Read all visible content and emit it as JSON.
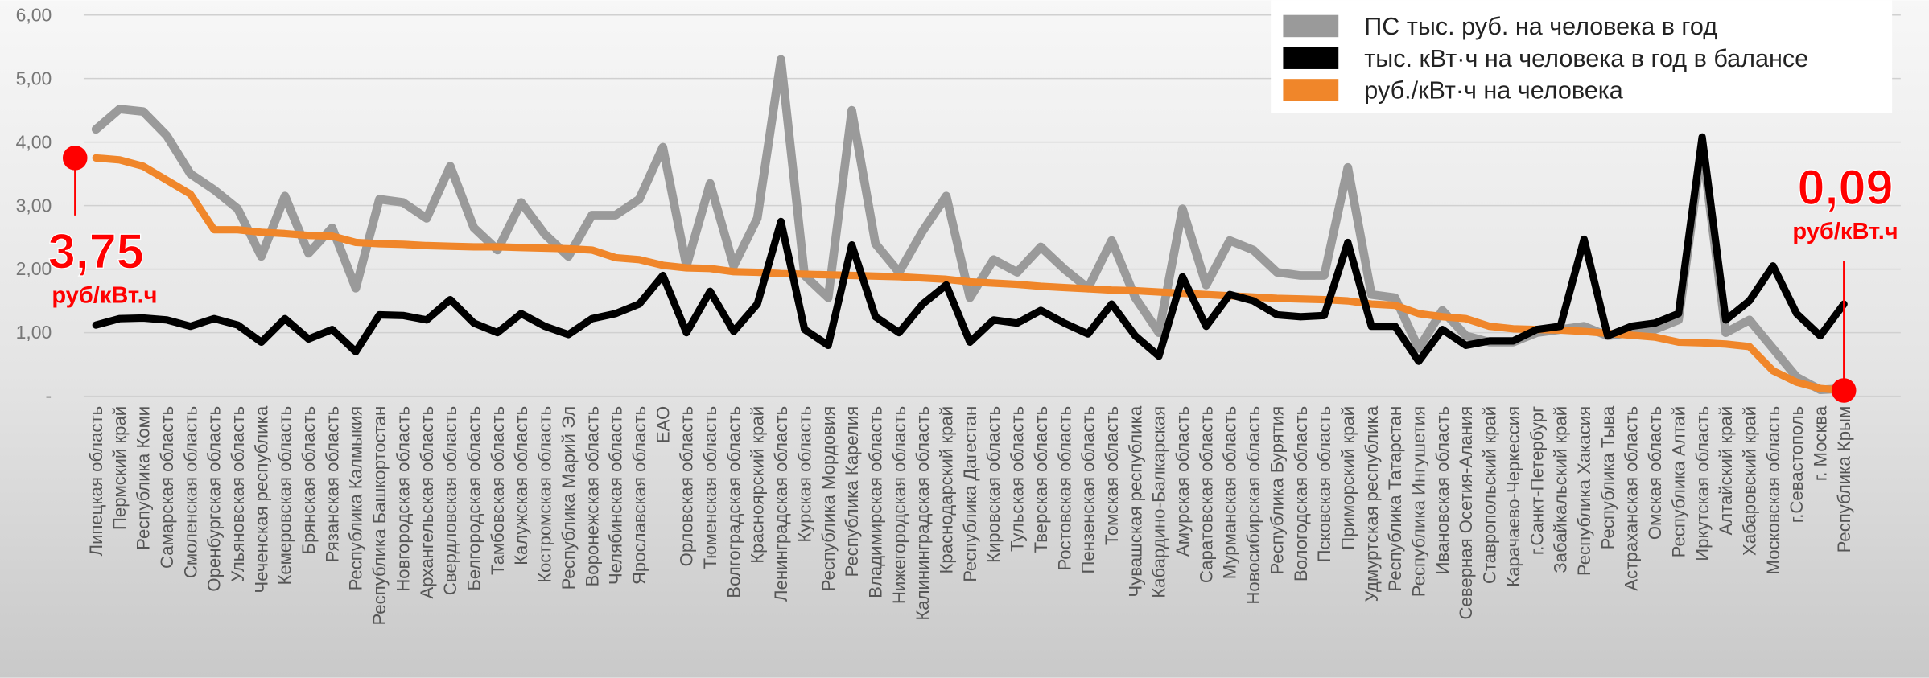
{
  "chart_data": {
    "type": "line",
    "categories": [
      "Липецкая область",
      "Пермский край",
      "Республика Коми",
      "Самарская область",
      "Смоленская область",
      "Оренбургская область",
      "Ульяновская область",
      "Чеченская республика",
      "Кемеровская область",
      "Брянская область",
      "Рязанская область",
      "Республика Калмыкия",
      "Республика Башкортостан",
      "Новгородская область",
      "Архангельская область",
      "Свердловская область",
      "Белгородская область",
      "Тамбовская область",
      "Калужская область",
      "Костромская область",
      "Республика Марий Эл",
      "Воронежская область",
      "Челябинская область",
      "Ярославская область",
      "ЕАО",
      "Орловская область",
      "Тюменская область",
      "Волгоградская область",
      "Красноярский край",
      "Ленинградская область",
      "Курская область",
      "Республика Мордовия",
      "Республика Карелия",
      "Владимирская область",
      "Нижегородская область",
      "Калининградская область",
      "Краснодарский край",
      "Республика Дагестан",
      "Кировская область",
      "Тульская область",
      "Тверская область",
      "Ростовская область",
      "Пензенская область",
      "Томская область",
      "Чувашская республика",
      "Кабардино-Балкарская",
      "Амурская область",
      "Саратовская область",
      "Мурманская область",
      "Новосибирская область",
      "Республика Бурятия",
      "Вологодская область",
      "Псковская область",
      "Приморский край",
      "Удмуртская республика",
      "Республика Татарстан",
      "Республика Ингушетия",
      "Ивановская область",
      "Северная Осетия-Алания",
      "Ставропольский край",
      "Карачаево-Черкессия",
      "г.Санкт-Петербург",
      "Забайкальский край",
      "Республика Хакасия",
      "Республика Тыва",
      "Астраханская область",
      "Омская область",
      "Республика Алтай",
      "Иркутская область",
      "Алтайский край",
      "Хабаровский край",
      "Московская область",
      "г.Севастополь",
      "г. Москва",
      "Республика Крым"
    ],
    "series": [
      {
        "name": "ПС тыс. руб. на человека в год",
        "color": "#9a9a9a",
        "values": [
          4.2,
          4.52,
          4.48,
          4.1,
          3.5,
          3.25,
          2.95,
          2.2,
          3.15,
          2.25,
          2.65,
          1.7,
          3.1,
          3.05,
          2.8,
          3.62,
          2.65,
          2.3,
          3.05,
          2.55,
          2.2,
          2.85,
          2.85,
          3.1,
          3.92,
          2.05,
          3.35,
          2.05,
          2.8,
          5.3,
          1.9,
          1.55,
          4.5,
          2.4,
          1.95,
          2.6,
          3.15,
          1.55,
          2.15,
          1.95,
          2.35,
          2.0,
          1.7,
          2.45,
          1.55,
          1.0,
          2.95,
          1.75,
          2.45,
          2.3,
          1.95,
          1.9,
          1.9,
          3.6,
          1.6,
          1.55,
          0.75,
          1.35,
          0.95,
          0.85,
          0.85,
          1.0,
          1.05,
          1.1,
          0.95,
          1.0,
          1.05,
          1.2,
          3.95,
          1.0,
          1.2,
          0.75,
          0.3,
          0.1,
          0.12
        ]
      },
      {
        "name": "руб./кВт·ч на человека",
        "color": "#f0862a",
        "values": [
          3.75,
          3.72,
          3.62,
          3.4,
          3.18,
          2.62,
          2.62,
          2.58,
          2.56,
          2.53,
          2.52,
          2.42,
          2.4,
          2.39,
          2.37,
          2.36,
          2.35,
          2.35,
          2.34,
          2.33,
          2.32,
          2.3,
          2.18,
          2.15,
          2.06,
          2.02,
          2.01,
          1.96,
          1.95,
          1.93,
          1.92,
          1.91,
          1.9,
          1.89,
          1.88,
          1.86,
          1.84,
          1.8,
          1.78,
          1.76,
          1.73,
          1.71,
          1.69,
          1.67,
          1.66,
          1.64,
          1.62,
          1.6,
          1.58,
          1.56,
          1.54,
          1.53,
          1.52,
          1.5,
          1.45,
          1.43,
          1.3,
          1.25,
          1.22,
          1.1,
          1.06,
          1.05,
          1.04,
          1.02,
          0.99,
          0.96,
          0.93,
          0.85,
          0.84,
          0.82,
          0.78,
          0.4,
          0.22,
          0.12,
          0.09
        ]
      },
      {
        "name": "тыс. кВт·ч на человека в год в балансе",
        "color": "#000000",
        "values": [
          1.12,
          1.22,
          1.23,
          1.2,
          1.1,
          1.22,
          1.12,
          0.85,
          1.22,
          0.9,
          1.05,
          0.7,
          1.28,
          1.27,
          1.2,
          1.52,
          1.15,
          1.0,
          1.3,
          1.1,
          0.97,
          1.22,
          1.3,
          1.45,
          1.9,
          1.0,
          1.65,
          1.02,
          1.45,
          2.75,
          1.05,
          0.8,
          2.38,
          1.25,
          1.0,
          1.45,
          1.75,
          0.85,
          1.2,
          1.15,
          1.35,
          1.15,
          0.98,
          1.45,
          0.95,
          0.63,
          1.88,
          1.1,
          1.6,
          1.5,
          1.28,
          1.25,
          1.27,
          2.42,
          1.1,
          1.1,
          0.55,
          1.05,
          0.8,
          0.87,
          0.87,
          1.05,
          1.1,
          2.47,
          0.95,
          1.1,
          1.15,
          1.3,
          4.08,
          1.2,
          1.5,
          2.05,
          1.3,
          0.95,
          1.45
        ]
      }
    ],
    "legend_order": [
      0,
      2,
      1
    ],
    "ylim": [
      0,
      6
    ],
    "yticks": [
      {
        "value": 0,
        "label": "-"
      },
      {
        "value": 1,
        "label": "1,00"
      },
      {
        "value": 2,
        "label": "2,00"
      },
      {
        "value": 3,
        "label": "3,00"
      },
      {
        "value": 4,
        "label": "4,00"
      },
      {
        "value": 5,
        "label": "5,00"
      },
      {
        "value": 6,
        "label": "6,00"
      }
    ],
    "grid": true,
    "legend": "upper right",
    "annotations": [
      {
        "text": "3,75",
        "unit": "руб/кВт.ч",
        "series": 1,
        "point": 0
      },
      {
        "text": "0,09",
        "unit": "руб/кВт.ч",
        "series": 1,
        "point": 74
      }
    ],
    "highlight_color": "#ff0000"
  }
}
